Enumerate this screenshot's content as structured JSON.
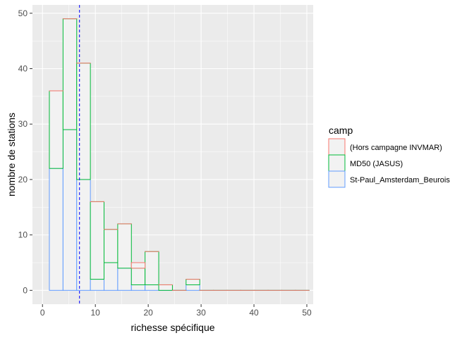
{
  "chart_data": {
    "type": "bar",
    "subtype": "stacked-histogram",
    "title": "",
    "xlabel": "richesse spécifique",
    "ylabel": "nombre de stations",
    "xlim": [
      -1.9,
      51.2
    ],
    "ylim": [
      -2.5,
      51.5
    ],
    "xticks": [
      0,
      10,
      20,
      30,
      40,
      50
    ],
    "yticks": [
      0,
      10,
      20,
      30,
      40,
      50
    ],
    "grid": true,
    "binwidth": 2.586,
    "bins_start": [
      1.3,
      3.886,
      6.472,
      9.058,
      11.644,
      14.23,
      16.816,
      19.402,
      21.988,
      24.574,
      27.16,
      29.746,
      32.332,
      34.918,
      37.504,
      40.09,
      42.676,
      45.262,
      47.848
    ],
    "vline": {
      "x": 7,
      "color": "#0000ff",
      "style": "dashed"
    },
    "legend": {
      "title": "camp",
      "position": "right"
    },
    "series": [
      {
        "name": "St-Paul_Amsterdam_Beurois",
        "color": "#619cff",
        "values": [
          22,
          29,
          20,
          2,
          5,
          4,
          1,
          1,
          0,
          0,
          1,
          0,
          0,
          0,
          0,
          0,
          0,
          0,
          0
        ]
      },
      {
        "name": "MD50 (JASUS)",
        "color": "#00ba38",
        "values": [
          14,
          20,
          21,
          14,
          6,
          8,
          3,
          6,
          1,
          0,
          1,
          0,
          0,
          0,
          0,
          0,
          0,
          0,
          0
        ]
      },
      {
        "name": "(Hors campagne INVMAR)",
        "color": "#f8766d",
        "values": [
          0,
          0,
          0,
          0,
          0,
          0,
          1,
          0,
          0,
          0,
          0,
          0,
          0,
          0,
          0,
          0,
          0,
          0,
          0
        ]
      }
    ],
    "legend_order": [
      "(Hors campagne INVMAR)",
      "MD50 (JASUS)",
      "St-Paul_Amsterdam_Beurois"
    ]
  },
  "colors": {
    "panel_bg": "#ebebeb",
    "grid_major": "#ffffff",
    "bar_fill": "#f2f2f2"
  }
}
